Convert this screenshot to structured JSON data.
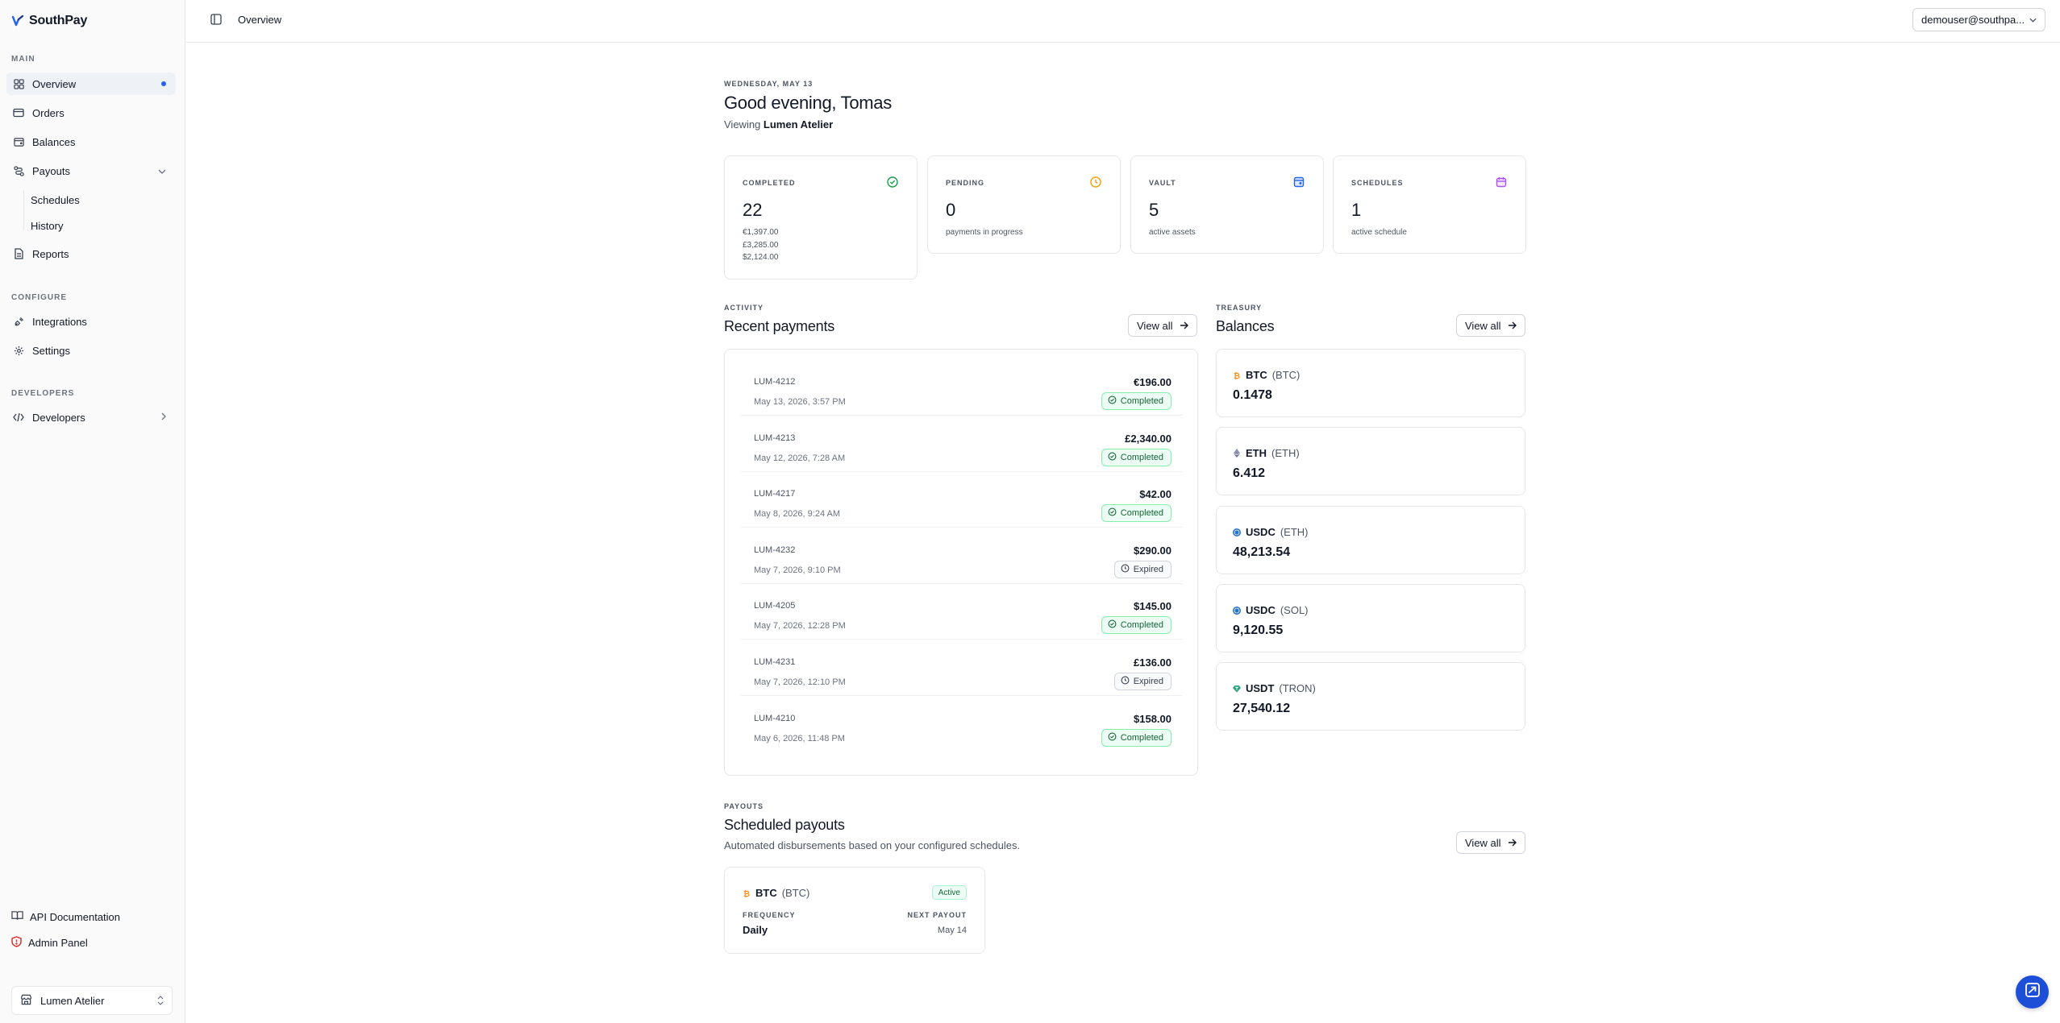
{
  "brand": {
    "name": "SouthPay",
    "accent": "#2563eb"
  },
  "sidebar": {
    "sections": {
      "main": "MAIN",
      "configure": "CONFIGURE",
      "developers": "DEVELOPERS"
    },
    "items": {
      "overview": "Overview",
      "orders": "Orders",
      "balances": "Balances",
      "payouts": "Payouts",
      "schedules": "Schedules",
      "history": "History",
      "reports": "Reports",
      "integrations": "Integrations",
      "settings": "Settings",
      "developers": "Developers"
    },
    "footer": {
      "api_docs": "API Documentation",
      "admin_panel": "Admin Panel",
      "org": "Lumen Atelier"
    }
  },
  "topbar": {
    "breadcrumb": "Overview",
    "user": "demouser@southpa..."
  },
  "main": {
    "date": "WEDNESDAY, MAY 13",
    "greeting": "Good evening, Tomas",
    "viewing_prefix": "Viewing",
    "viewing_org": "Lumen Atelier",
    "stats": [
      {
        "label": "COMPLETED",
        "value": "22",
        "sub": [
          "€1,397.00",
          "£3,285.00",
          "$2,124.00"
        ],
        "color": "#16a34a",
        "icon": "check-circle-icon"
      },
      {
        "label": "PENDING",
        "value": "0",
        "sub": [
          "payments in progress"
        ],
        "color": "#f59e0b",
        "icon": "clock-icon"
      },
      {
        "label": "VAULT",
        "value": "5",
        "sub": [
          "active assets"
        ],
        "color": "#2563eb",
        "icon": "vault-icon"
      },
      {
        "label": "SCHEDULES",
        "value": "1",
        "sub": [
          "active schedule"
        ],
        "color": "#a855f7",
        "icon": "calendar-icon"
      }
    ],
    "activity": {
      "eyebrow": "ACTIVITY",
      "title": "Recent payments",
      "view_all": "View all",
      "payments": [
        {
          "id": "LUM-4212",
          "date": "May 13, 2026, 3:57 PM",
          "amount": "€196.00",
          "status": "Completed"
        },
        {
          "id": "LUM-4213",
          "date": "May 12, 2026, 7:28 AM",
          "amount": "£2,340.00",
          "status": "Completed"
        },
        {
          "id": "LUM-4217",
          "date": "May 8, 2026, 9:24 AM",
          "amount": "$42.00",
          "status": "Completed"
        },
        {
          "id": "LUM-4232",
          "date": "May 7, 2026, 9:10 PM",
          "amount": "$290.00",
          "status": "Expired"
        },
        {
          "id": "LUM-4205",
          "date": "May 7, 2026, 12:28 PM",
          "amount": "$145.00",
          "status": "Completed"
        },
        {
          "id": "LUM-4231",
          "date": "May 7, 2026, 12:10 PM",
          "amount": "£136.00",
          "status": "Expired"
        },
        {
          "id": "LUM-4210",
          "date": "May 6, 2026, 11:48 PM",
          "amount": "$158.00",
          "status": "Completed"
        }
      ]
    },
    "treasury": {
      "eyebrow": "TREASURY",
      "title": "Balances",
      "view_all": "View all",
      "balances": [
        {
          "symbol": "BTC",
          "network": "(BTC)",
          "amount": "0.1478",
          "color": "#f7931a"
        },
        {
          "symbol": "ETH",
          "network": "(ETH)",
          "amount": "6.412",
          "color": "#8a92b2"
        },
        {
          "symbol": "USDC",
          "network": "(ETH)",
          "amount": "48,213.54",
          "color": "#2775ca"
        },
        {
          "symbol": "USDC",
          "network": "(SOL)",
          "amount": "9,120.55",
          "color": "#2775ca"
        },
        {
          "symbol": "USDT",
          "network": "(TRON)",
          "amount": "27,540.12",
          "color": "#26a17b"
        }
      ]
    },
    "payouts": {
      "eyebrow": "PAYOUTS",
      "title": "Scheduled payouts",
      "description": "Automated disbursements based on your configured schedules.",
      "view_all": "View all",
      "schedule": {
        "symbol": "BTC",
        "network": "(BTC)",
        "status": "Active",
        "frequency_label": "FREQUENCY",
        "frequency": "Daily",
        "next_label": "NEXT PAYOUT",
        "next": "May 14"
      }
    }
  }
}
